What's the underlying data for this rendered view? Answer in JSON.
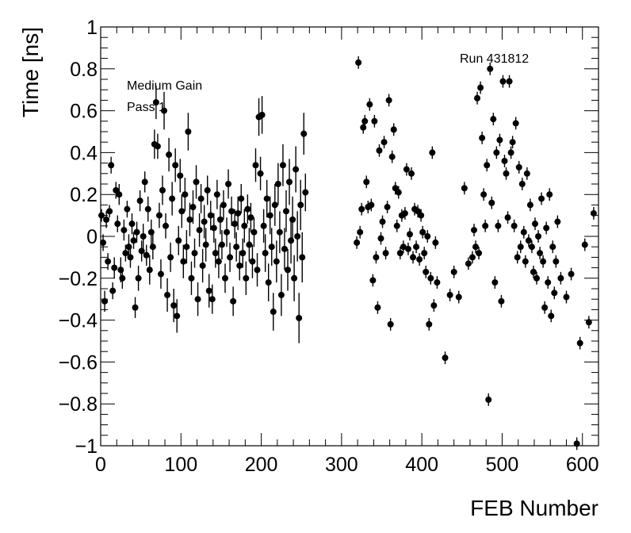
{
  "chart_data": {
    "type": "scatter",
    "xlabel": "FEB Number",
    "ylabel": "Time [ns]",
    "xlim": [
      0,
      620
    ],
    "ylim": [
      -1,
      1
    ],
    "xticks": [
      0,
      100,
      200,
      300,
      400,
      500,
      600
    ],
    "xtick_labels": [
      "0",
      "100",
      "200",
      "300",
      "400",
      "500",
      "600"
    ],
    "yticks": [
      -1,
      -0.8,
      -0.6,
      -0.4,
      -0.2,
      0,
      0.2,
      0.4,
      0.6,
      0.8,
      1
    ],
    "ytick_labels": [
      "−1",
      "−0.8",
      "−0.6",
      "−0.4",
      "−0.2",
      "0",
      "0.2",
      "0.4",
      "0.6",
      "0.8",
      "1"
    ],
    "annotations": [
      "Medium Gain",
      "Pass 1",
      "Run 431812"
    ],
    "grid": false,
    "marker_color": "#000000",
    "points": [
      [
        1,
        0.1,
        0.03
      ],
      [
        3,
        -0.03,
        0.04
      ],
      [
        5,
        -0.31,
        0.05
      ],
      [
        7,
        0.08,
        0.04
      ],
      [
        9,
        -0.12,
        0.04
      ],
      [
        11,
        0.12,
        0.03
      ],
      [
        13,
        0.34,
        0.04
      ],
      [
        15,
        -0.26,
        0.04
      ],
      [
        17,
        -0.15,
        0.05
      ],
      [
        19,
        0.22,
        0.04
      ],
      [
        21,
        0.06,
        0.04
      ],
      [
        23,
        0.2,
        0.05
      ],
      [
        25,
        -0.16,
        0.06
      ],
      [
        27,
        -0.2,
        0.05
      ],
      [
        29,
        0.03,
        0.05
      ],
      [
        31,
        -0.08,
        0.04
      ],
      [
        33,
        0.13,
        0.04
      ],
      [
        35,
        -0.05,
        0.06
      ],
      [
        37,
        -0.1,
        0.05
      ],
      [
        39,
        0.06,
        0.05
      ],
      [
        41,
        -0.02,
        0.04
      ],
      [
        43,
        -0.34,
        0.05
      ],
      [
        45,
        0.02,
        0.05
      ],
      [
        47,
        -0.2,
        0.06
      ],
      [
        49,
        0.17,
        0.05
      ],
      [
        51,
        -0.07,
        0.05
      ],
      [
        53,
        0.0,
        0.06
      ],
      [
        55,
        0.26,
        0.05
      ],
      [
        57,
        -0.09,
        0.05
      ],
      [
        59,
        0.13,
        0.06
      ],
      [
        61,
        -0.16,
        0.07
      ],
      [
        63,
        0.02,
        0.06
      ],
      [
        65,
        -0.05,
        0.06
      ],
      [
        67,
        0.44,
        0.07
      ],
      [
        69,
        0.64,
        0.08
      ],
      [
        71,
        0.43,
        0.06
      ],
      [
        73,
        0.1,
        0.06
      ],
      [
        75,
        -0.18,
        0.07
      ],
      [
        77,
        0.22,
        0.07
      ],
      [
        79,
        0.6,
        0.09
      ],
      [
        81,
        0.05,
        0.06
      ],
      [
        83,
        -0.28,
        0.08
      ],
      [
        85,
        0.39,
        0.08
      ],
      [
        87,
        -0.1,
        0.07
      ],
      [
        89,
        0.18,
        0.08
      ],
      [
        91,
        -0.33,
        0.08
      ],
      [
        93,
        0.34,
        0.08
      ],
      [
        95,
        -0.38,
        0.08
      ],
      [
        97,
        -0.02,
        0.07
      ],
      [
        99,
        0.29,
        0.08
      ],
      [
        101,
        0.12,
        0.08
      ],
      [
        103,
        -0.12,
        0.08
      ],
      [
        105,
        0.2,
        0.08
      ],
      [
        107,
        -0.05,
        0.08
      ],
      [
        109,
        0.5,
        0.09
      ],
      [
        111,
        0.08,
        0.08
      ],
      [
        113,
        -0.2,
        0.08
      ],
      [
        115,
        0.14,
        0.08
      ],
      [
        117,
        -0.08,
        0.07
      ],
      [
        119,
        0.26,
        0.08
      ],
      [
        121,
        -0.3,
        0.08
      ],
      [
        123,
        0.03,
        0.08
      ],
      [
        125,
        0.18,
        0.07
      ],
      [
        127,
        -0.14,
        0.08
      ],
      [
        129,
        0.07,
        0.08
      ],
      [
        131,
        -0.04,
        0.08
      ],
      [
        133,
        0.22,
        0.07
      ],
      [
        135,
        -0.26,
        0.08
      ],
      [
        137,
        0.1,
        0.07
      ],
      [
        139,
        -0.3,
        0.07
      ],
      [
        141,
        0.04,
        0.07
      ],
      [
        143,
        -0.08,
        0.07
      ],
      [
        145,
        0.2,
        0.07
      ],
      [
        147,
        -0.12,
        0.08
      ],
      [
        149,
        0.08,
        0.07
      ],
      [
        151,
        -0.04,
        0.07
      ],
      [
        153,
        0.15,
        0.07
      ],
      [
        155,
        -0.2,
        0.07
      ],
      [
        157,
        0.02,
        0.07
      ],
      [
        159,
        0.25,
        0.07
      ],
      [
        161,
        -0.1,
        0.07
      ],
      [
        163,
        0.12,
        0.07
      ],
      [
        165,
        -0.31,
        0.07
      ],
      [
        167,
        0.06,
        0.07
      ],
      [
        169,
        -0.05,
        0.07
      ],
      [
        171,
        0.11,
        0.08
      ],
      [
        173,
        -0.14,
        0.07
      ],
      [
        175,
        0.18,
        0.07
      ],
      [
        177,
        -0.08,
        0.07
      ],
      [
        179,
        0.05,
        0.08
      ],
      [
        181,
        -0.2,
        0.08
      ],
      [
        183,
        0.13,
        0.07
      ],
      [
        185,
        -0.04,
        0.08
      ],
      [
        187,
        0.09,
        0.07
      ],
      [
        189,
        -0.12,
        0.08
      ],
      [
        191,
        0.02,
        0.07
      ],
      [
        193,
        0.34,
        0.08
      ],
      [
        195,
        -0.16,
        0.08
      ],
      [
        197,
        0.57,
        0.09
      ],
      [
        199,
        0.3,
        0.08
      ],
      [
        201,
        0.58,
        0.09
      ],
      [
        203,
        0.05,
        0.08
      ],
      [
        205,
        -0.08,
        0.09
      ],
      [
        207,
        0.18,
        0.09
      ],
      [
        209,
        -0.22,
        0.09
      ],
      [
        211,
        0.1,
        0.09
      ],
      [
        213,
        -0.05,
        0.09
      ],
      [
        215,
        -0.36,
        0.09
      ],
      [
        217,
        0.15,
        0.1
      ],
      [
        219,
        -0.12,
        0.1
      ],
      [
        221,
        0.25,
        0.1
      ],
      [
        223,
        0.02,
        0.1
      ],
      [
        225,
        -0.28,
        0.1
      ],
      [
        227,
        0.34,
        0.1
      ],
      [
        229,
        -0.06,
        0.1
      ],
      [
        231,
        0.12,
        0.1
      ],
      [
        233,
        -0.16,
        0.1
      ],
      [
        235,
        0.26,
        0.11
      ],
      [
        237,
        -0.02,
        0.11
      ],
      [
        239,
        0.08,
        0.11
      ],
      [
        241,
        -0.2,
        0.11
      ],
      [
        243,
        0.32,
        0.11
      ],
      [
        245,
        0.0,
        0.12
      ],
      [
        247,
        -0.39,
        0.12
      ],
      [
        249,
        0.15,
        0.12
      ],
      [
        251,
        -0.1,
        0.12
      ],
      [
        253,
        0.49,
        0.1
      ],
      [
        255,
        0.21,
        0.09
      ],
      [
        319,
        -0.03,
        0.03
      ],
      [
        321,
        0.83,
        0.03
      ],
      [
        323,
        0.02,
        0.03
      ],
      [
        325,
        0.13,
        0.03
      ],
      [
        327,
        0.52,
        0.03
      ],
      [
        329,
        0.55,
        0.03
      ],
      [
        331,
        0.26,
        0.03
      ],
      [
        333,
        0.14,
        0.03
      ],
      [
        335,
        0.63,
        0.03
      ],
      [
        337,
        0.15,
        0.03
      ],
      [
        339,
        -0.21,
        0.03
      ],
      [
        341,
        0.55,
        0.03
      ],
      [
        343,
        -0.1,
        0.03
      ],
      [
        345,
        -0.34,
        0.03
      ],
      [
        347,
        0.41,
        0.03
      ],
      [
        349,
        -0.01,
        0.03
      ],
      [
        351,
        0.07,
        0.03
      ],
      [
        353,
        0.45,
        0.03
      ],
      [
        355,
        -0.08,
        0.03
      ],
      [
        357,
        0.14,
        0.03
      ],
      [
        359,
        0.65,
        0.03
      ],
      [
        361,
        -0.42,
        0.03
      ],
      [
        363,
        0.38,
        0.03
      ],
      [
        365,
        0.51,
        0.03
      ],
      [
        367,
        0.23,
        0.03
      ],
      [
        369,
        0.05,
        0.03
      ],
      [
        371,
        0.21,
        0.03
      ],
      [
        373,
        -0.08,
        0.03
      ],
      [
        375,
        0.1,
        0.03
      ],
      [
        377,
        -0.05,
        0.03
      ],
      [
        379,
        0.11,
        0.03
      ],
      [
        381,
        0.32,
        0.03
      ],
      [
        383,
        -0.06,
        0.03
      ],
      [
        385,
        0.01,
        0.03
      ],
      [
        387,
        0.3,
        0.03
      ],
      [
        389,
        -0.1,
        0.03
      ],
      [
        391,
        0.13,
        0.03
      ],
      [
        393,
        -0.05,
        0.03
      ],
      [
        395,
        0.12,
        0.03
      ],
      [
        397,
        -0.11,
        0.03
      ],
      [
        399,
        0.1,
        0.03
      ],
      [
        401,
        0.02,
        0.03
      ],
      [
        403,
        -0.08,
        0.03
      ],
      [
        405,
        -0.17,
        0.03
      ],
      [
        407,
        0.0,
        0.03
      ],
      [
        409,
        -0.42,
        0.03
      ],
      [
        411,
        -0.2,
        0.03
      ],
      [
        413,
        0.4,
        0.03
      ],
      [
        415,
        -0.33,
        0.03
      ],
      [
        417,
        -0.03,
        0.03
      ],
      [
        419,
        -0.22,
        0.03
      ],
      [
        429,
        -0.58,
        0.03
      ],
      [
        435,
        -0.28,
        0.03
      ],
      [
        440,
        -0.17,
        0.03
      ],
      [
        446,
        -0.29,
        0.03
      ],
      [
        453,
        0.23,
        0.03
      ],
      [
        458,
        -0.13,
        0.03
      ],
      [
        463,
        -0.1,
        0.03
      ],
      [
        465,
        0.03,
        0.03
      ],
      [
        467,
        -0.05,
        0.03
      ],
      [
        469,
        0.66,
        0.03
      ],
      [
        471,
        -0.08,
        0.03
      ],
      [
        473,
        0.71,
        0.03
      ],
      [
        475,
        0.47,
        0.03
      ],
      [
        477,
        0.2,
        0.03
      ],
      [
        479,
        0.05,
        0.03
      ],
      [
        481,
        0.34,
        0.03
      ],
      [
        483,
        -0.78,
        0.03
      ],
      [
        485,
        0.8,
        0.03
      ],
      [
        487,
        0.16,
        0.03
      ],
      [
        489,
        0.56,
        0.03
      ],
      [
        491,
        -0.22,
        0.03
      ],
      [
        493,
        0.4,
        0.03
      ],
      [
        495,
        0.05,
        0.03
      ],
      [
        497,
        0.46,
        0.03
      ],
      [
        499,
        -0.31,
        0.03
      ],
      [
        501,
        0.74,
        0.03
      ],
      [
        503,
        0.36,
        0.03
      ],
      [
        505,
        0.3,
        0.03
      ],
      [
        507,
        0.09,
        0.03
      ],
      [
        509,
        0.74,
        0.03
      ],
      [
        511,
        0.4,
        0.03
      ],
      [
        513,
        0.45,
        0.03
      ],
      [
        515,
        0.05,
        0.03
      ],
      [
        517,
        0.54,
        0.03
      ],
      [
        519,
        -0.1,
        0.03
      ],
      [
        521,
        0.33,
        0.03
      ],
      [
        523,
        -0.05,
        0.03
      ],
      [
        525,
        0.25,
        0.03
      ],
      [
        527,
        0.02,
        0.03
      ],
      [
        529,
        -0.12,
        0.03
      ],
      [
        531,
        0.3,
        0.03
      ],
      [
        533,
        -0.02,
        0.03
      ],
      [
        535,
        0.15,
        0.03
      ],
      [
        537,
        -0.05,
        0.03
      ],
      [
        539,
        -0.17,
        0.03
      ],
      [
        541,
        0.06,
        0.03
      ],
      [
        543,
        -0.2,
        0.03
      ],
      [
        545,
        0.0,
        0.03
      ],
      [
        547,
        -0.08,
        0.03
      ],
      [
        549,
        0.18,
        0.03
      ],
      [
        551,
        -0.12,
        0.03
      ],
      [
        553,
        -0.34,
        0.03
      ],
      [
        555,
        0.04,
        0.03
      ],
      [
        557,
        -0.22,
        0.03
      ],
      [
        559,
        0.2,
        0.03
      ],
      [
        561,
        -0.38,
        0.03
      ],
      [
        563,
        -0.05,
        0.03
      ],
      [
        565,
        -0.27,
        0.03
      ],
      [
        567,
        -0.12,
        0.03
      ],
      [
        569,
        0.07,
        0.03
      ],
      [
        573,
        -0.2,
        0.03
      ],
      [
        580,
        -0.29,
        0.03
      ],
      [
        586,
        -0.18,
        0.03
      ],
      [
        593,
        -0.99,
        0.03
      ],
      [
        597,
        -0.51,
        0.03
      ],
      [
        603,
        -0.04,
        0.03
      ],
      [
        608,
        -0.41,
        0.03
      ],
      [
        614,
        0.11,
        0.03
      ]
    ]
  }
}
